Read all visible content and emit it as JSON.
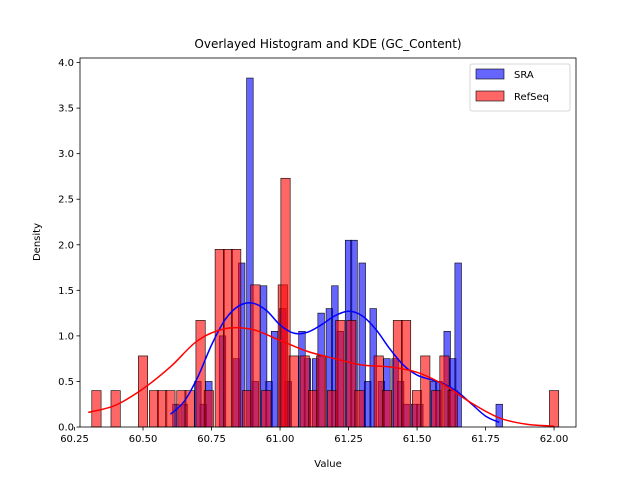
{
  "chart_data": {
    "type": "histogram",
    "title": "Overlayed Histogram and KDE (GC_Content)",
    "xlabel": "Value",
    "ylabel": "Density",
    "xlim": [
      60.27,
      62.08
    ],
    "ylim": [
      0,
      4.05
    ],
    "xticks": [
      "60.25",
      "60.50",
      "60.75",
      "61.00",
      "61.25",
      "61.50",
      "61.75",
      "62.00"
    ],
    "xtick_values": [
      60.25,
      60.5,
      60.75,
      61.0,
      61.25,
      61.5,
      61.75,
      62.0
    ],
    "yticks": [
      "0.0",
      "0.5",
      "1.0",
      "1.5",
      "2.0",
      "2.5",
      "3.0",
      "3.5",
      "4.0"
    ],
    "ytick_values": [
      0,
      0.5,
      1.0,
      1.5,
      2.0,
      2.5,
      3.0,
      3.5,
      4.0
    ],
    "legend": {
      "position": "top-right",
      "entries": [
        "SRA",
        "RefSeq"
      ]
    },
    "grid": false,
    "series": [
      {
        "name": "SRA",
        "color": "#0000ff",
        "bin_width": 0.024,
        "bins": [
          [
            60.62,
            0.25
          ],
          [
            60.65,
            0.25
          ],
          [
            60.7,
            0.5
          ],
          [
            60.72,
            0.25
          ],
          [
            60.74,
            0.5
          ],
          [
            60.79,
            1.0
          ],
          [
            60.84,
            0.75
          ],
          [
            60.86,
            1.8
          ],
          [
            60.89,
            3.83
          ],
          [
            60.91,
            0.5
          ],
          [
            60.94,
            1.55
          ],
          [
            60.96,
            0.5
          ],
          [
            60.98,
            1.05
          ],
          [
            61.01,
            1.3
          ],
          [
            61.03,
            0.5
          ],
          [
            61.08,
            1.05
          ],
          [
            61.1,
            0.75
          ],
          [
            61.13,
            0.75
          ],
          [
            61.15,
            1.25
          ],
          [
            61.18,
            1.3
          ],
          [
            61.2,
            1.55
          ],
          [
            61.22,
            1.05
          ],
          [
            61.25,
            2.05
          ],
          [
            61.27,
            2.05
          ],
          [
            61.3,
            1.8
          ],
          [
            61.32,
            0.5
          ],
          [
            61.34,
            1.3
          ],
          [
            61.37,
            0.5
          ],
          [
            61.39,
            0.75
          ],
          [
            61.42,
            0.75
          ],
          [
            61.44,
            0.5
          ],
          [
            61.46,
            0.25
          ],
          [
            61.49,
            0.25
          ],
          [
            61.51,
            0.25
          ],
          [
            61.56,
            0.5
          ],
          [
            61.58,
            0.5
          ],
          [
            61.61,
            1.05
          ],
          [
            61.63,
            0.75
          ],
          [
            61.65,
            1.8
          ],
          [
            61.8,
            0.25
          ]
        ],
        "kde": [
          [
            60.6,
            0.14
          ],
          [
            60.65,
            0.28
          ],
          [
            60.7,
            0.55
          ],
          [
            60.75,
            0.9
          ],
          [
            60.8,
            1.18
          ],
          [
            60.85,
            1.33
          ],
          [
            60.9,
            1.36
          ],
          [
            60.95,
            1.28
          ],
          [
            61.0,
            1.12
          ],
          [
            61.05,
            1.03
          ],
          [
            61.1,
            1.04
          ],
          [
            61.15,
            1.12
          ],
          [
            61.2,
            1.22
          ],
          [
            61.25,
            1.27
          ],
          [
            61.3,
            1.22
          ],
          [
            61.35,
            1.07
          ],
          [
            61.4,
            0.86
          ],
          [
            61.45,
            0.68
          ],
          [
            61.5,
            0.57
          ],
          [
            61.55,
            0.52
          ],
          [
            61.6,
            0.47
          ],
          [
            61.65,
            0.38
          ],
          [
            61.7,
            0.25
          ],
          [
            61.75,
            0.12
          ],
          [
            61.8,
            0.05
          ]
        ]
      },
      {
        "name": "RefSeq",
        "color": "#ff0000",
        "bin_width": 0.034,
        "bins": [
          [
            60.33,
            0.4
          ],
          [
            60.4,
            0.4
          ],
          [
            60.5,
            0.78
          ],
          [
            60.54,
            0.4
          ],
          [
            60.57,
            0.4
          ],
          [
            60.6,
            0.4
          ],
          [
            60.64,
            0.4
          ],
          [
            60.67,
            0.4
          ],
          [
            60.71,
            1.17
          ],
          [
            60.74,
            0.4
          ],
          [
            60.78,
            1.95
          ],
          [
            60.81,
            1.95
          ],
          [
            60.84,
            1.95
          ],
          [
            60.88,
            0.4
          ],
          [
            60.91,
            1.56
          ],
          [
            60.95,
            0.4
          ],
          [
            61.01,
            1.56
          ],
          [
            61.02,
            2.73
          ],
          [
            61.05,
            0.78
          ],
          [
            61.09,
            0.78
          ],
          [
            61.12,
            0.4
          ],
          [
            61.15,
            0.78
          ],
          [
            61.19,
            0.4
          ],
          [
            61.22,
            1.17
          ],
          [
            61.26,
            1.17
          ],
          [
            61.29,
            0.4
          ],
          [
            61.36,
            0.78
          ],
          [
            61.39,
            0.4
          ],
          [
            61.43,
            1.17
          ],
          [
            61.46,
            1.17
          ],
          [
            61.5,
            0.4
          ],
          [
            61.53,
            0.78
          ],
          [
            61.57,
            0.4
          ],
          [
            61.6,
            0.78
          ],
          [
            61.63,
            0.4
          ],
          [
            62.0,
            0.4
          ]
        ],
        "kde": [
          [
            60.3,
            0.16
          ],
          [
            60.4,
            0.24
          ],
          [
            60.5,
            0.42
          ],
          [
            60.6,
            0.66
          ],
          [
            60.7,
            0.95
          ],
          [
            60.8,
            1.08
          ],
          [
            60.9,
            1.07
          ],
          [
            61.0,
            0.95
          ],
          [
            61.1,
            0.83
          ],
          [
            61.2,
            0.75
          ],
          [
            61.3,
            0.68
          ],
          [
            61.4,
            0.66
          ],
          [
            61.5,
            0.6
          ],
          [
            61.6,
            0.46
          ],
          [
            61.7,
            0.26
          ],
          [
            61.8,
            0.1
          ],
          [
            61.9,
            0.03
          ],
          [
            62.0,
            0.01
          ]
        ]
      }
    ]
  }
}
